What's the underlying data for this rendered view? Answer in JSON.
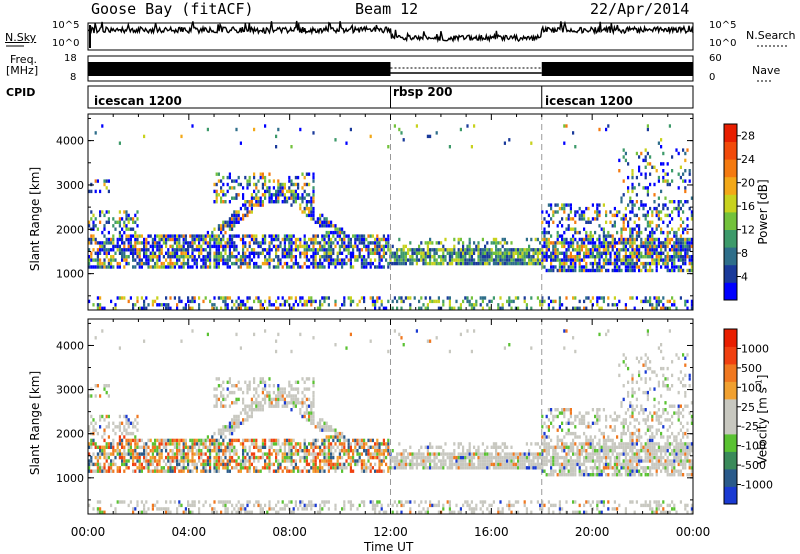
{
  "header": {
    "station": "Goose Bay (fitACF)",
    "beam": "Beam 12",
    "date": "22/Apr/2014"
  },
  "top_panels": {
    "nsky_label": "N.Sky",
    "nsky_ticks": [
      "10^5",
      "10^0"
    ],
    "nsearch_label": "N.Search",
    "nsearch_ticks": [
      "10^5",
      "10^0"
    ],
    "freq_label": "Freq.",
    "freq_unit": "[MHz]",
    "freq_ticks": [
      "18",
      "8"
    ],
    "nave_label": "Nave",
    "nave_ticks": [
      "60",
      "0"
    ],
    "cpid_label": "CPID",
    "cpid_segments": [
      {
        "name": "icescan 1200",
        "start_hour": 0,
        "end_hour": 12
      },
      {
        "name": "rbsp 200",
        "start_hour": 12,
        "end_hour": 18
      },
      {
        "name": "icescan 1200",
        "start_hour": 18,
        "end_hour": 24
      }
    ]
  },
  "chart_data": [
    {
      "type": "heatmap",
      "name": "power-panel",
      "ylabel": "Slant Range [km]",
      "xlabel": "Time UT",
      "x_ticks": [
        "00:00",
        "04:00",
        "08:00",
        "12:00",
        "16:00",
        "20:00",
        "00:00"
      ],
      "x_tick_hours": [
        0,
        4,
        8,
        12,
        16,
        20,
        24
      ],
      "xlim_hours": [
        0,
        24
      ],
      "ylim": [
        180,
        4600
      ],
      "y_ticks": [
        1000,
        2000,
        3000,
        4000
      ],
      "colorbar": {
        "label": "Power [dB]",
        "ticks": [
          "28",
          "24",
          "20",
          "16",
          "12",
          "8",
          "4"
        ],
        "tick_values": [
          28,
          24,
          20,
          16,
          12,
          8,
          4
        ],
        "range": [
          0,
          30
        ],
        "colors": [
          "#0000ff",
          "#1a3a9a",
          "#2e6e8a",
          "#3d9a6a",
          "#73c23c",
          "#c8d21e",
          "#f2a818",
          "#f47a10",
          "#f24a0a",
          "#e81e00"
        ]
      },
      "features": [
        {
          "feature": "main echo band",
          "hours": [
            0,
            12
          ],
          "range_km": [
            1100,
            1900
          ]
        },
        {
          "feature": "arc echo",
          "hours": [
            3,
            10
          ],
          "range_km": [
            1500,
            2800
          ]
        },
        {
          "feature": "rbsp band",
          "hours": [
            12,
            18
          ],
          "range_km": [
            1150,
            1550
          ]
        },
        {
          "feature": "evening band",
          "hours": [
            18,
            24
          ],
          "range_km": [
            1100,
            1800
          ]
        }
      ]
    },
    {
      "type": "heatmap",
      "name": "velocity-panel",
      "ylabel": "Slant Range [km]",
      "xlabel": "Time UT",
      "x_ticks": [
        "00:00",
        "04:00",
        "08:00",
        "12:00",
        "16:00",
        "20:00",
        "00:00"
      ],
      "x_tick_hours": [
        0,
        4,
        8,
        12,
        16,
        20,
        24
      ],
      "xlim_hours": [
        0,
        24
      ],
      "ylim": [
        180,
        4600
      ],
      "y_ticks": [
        1000,
        2000,
        3000,
        4000
      ],
      "colorbar": {
        "label": "Velocity [m s",
        "label_sup": "-1",
        "label_end": "]",
        "ticks": [
          "1000",
          "500",
          "100",
          "25",
          "-25",
          "-100",
          "-500",
          "-1000"
        ],
        "colors": [
          "#1a3ad2",
          "#2a5a8a",
          "#3a8a5a",
          "#5ac232",
          "#c8c8c0",
          "#c8c8c0",
          "#f0a030",
          "#f07820",
          "#f04010",
          "#e81e00"
        ]
      }
    }
  ],
  "time_axis": {
    "label": "Time UT"
  }
}
